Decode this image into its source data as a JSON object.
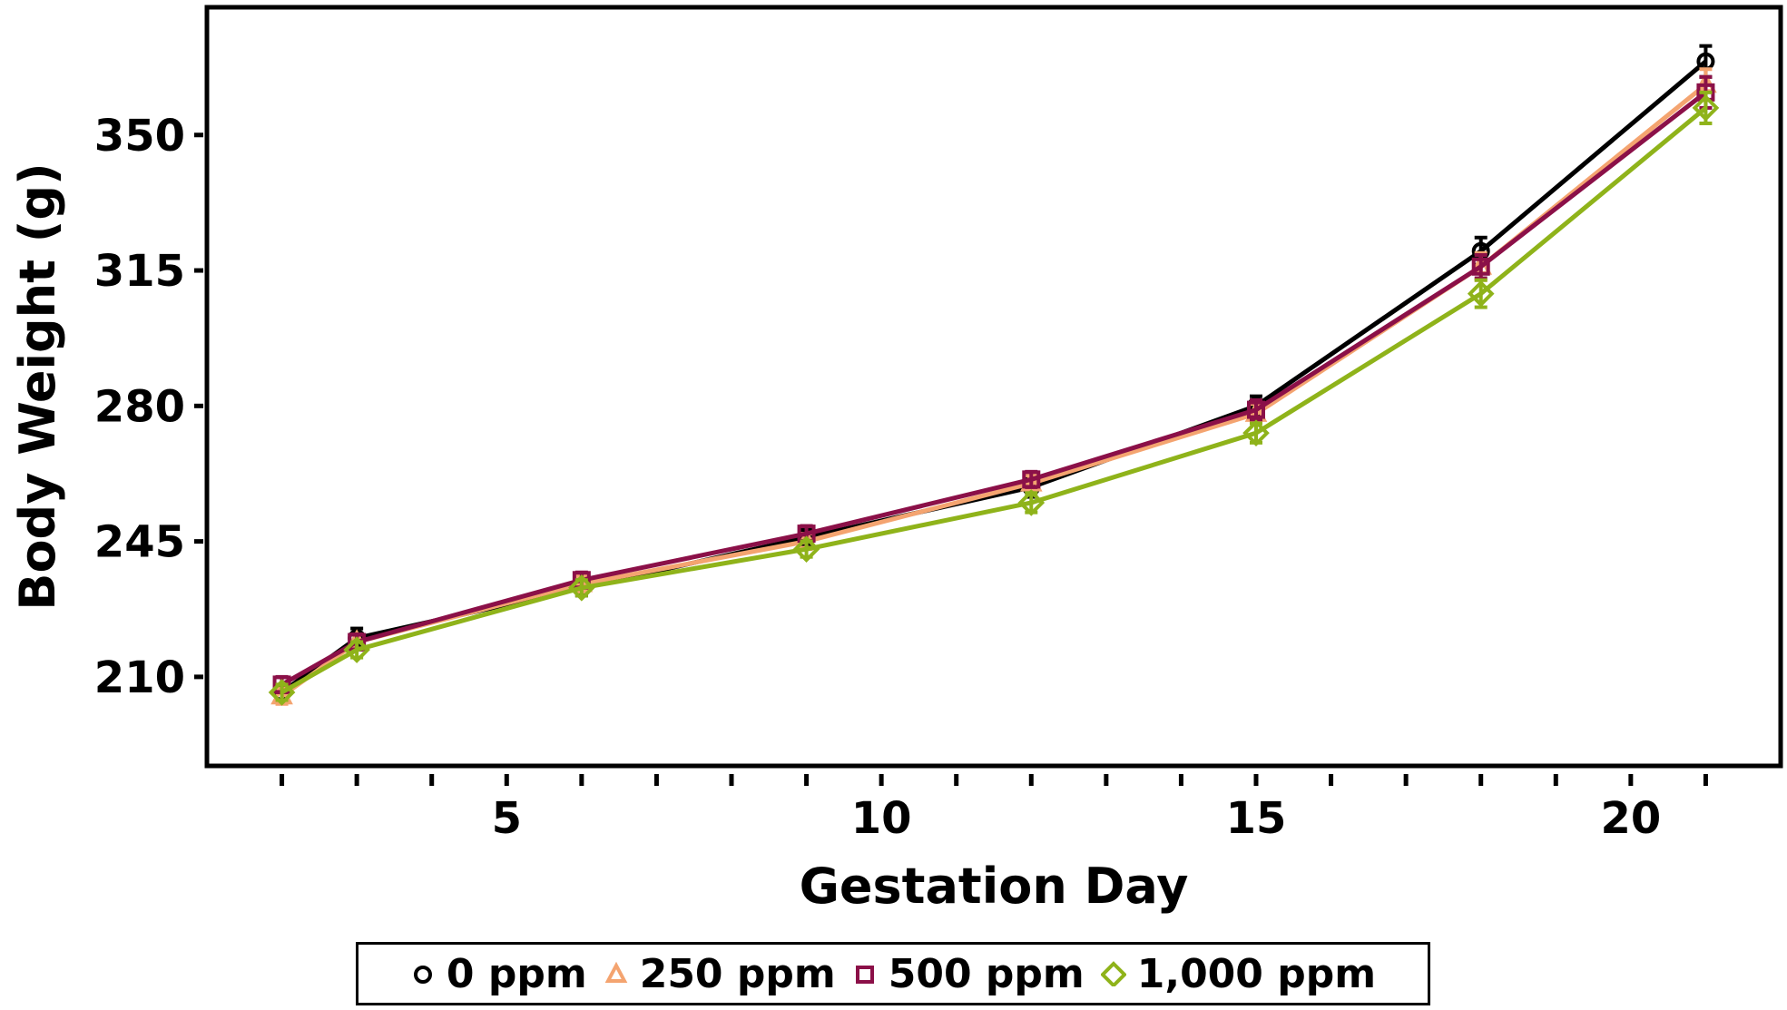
{
  "chart_data": {
    "type": "line",
    "xlabel": "Gestation Day",
    "ylabel": "Body Weight (g)",
    "xlim": [
      1.0,
      22.0
    ],
    "ylim": [
      187.0,
      383.0
    ],
    "x_ticks_major": [
      5,
      10,
      15,
      20
    ],
    "x_ticks_minor": [
      2,
      3,
      4,
      6,
      7,
      8,
      9,
      11,
      12,
      13,
      14,
      16,
      17,
      18,
      19,
      21
    ],
    "y_ticks": [
      210,
      245,
      280,
      315,
      350
    ],
    "grid": false,
    "legend_placement": "bottom-center",
    "x": [
      2,
      3,
      6,
      9,
      12,
      15,
      18,
      21
    ],
    "series": [
      {
        "name": "0 ppm",
        "color": "#000000",
        "marker": "circle",
        "values": [
          206,
          220,
          233,
          246,
          259,
          280,
          320,
          369
        ],
        "errors": [
          2.0,
          2.5,
          2.0,
          2.0,
          2.5,
          2.5,
          3.5,
          4.0
        ]
      },
      {
        "name": "250 ppm",
        "color": "#f4a470",
        "marker": "triangle",
        "values": [
          205,
          219,
          234,
          245,
          260,
          278,
          316,
          363
        ],
        "errors": [
          2.0,
          2.0,
          2.0,
          2.0,
          2.0,
          2.5,
          3.5,
          4.0
        ]
      },
      {
        "name": "500 ppm",
        "color": "#8b1048",
        "marker": "square",
        "values": [
          208,
          219,
          235,
          247,
          261,
          279,
          316,
          361
        ],
        "errors": [
          2.0,
          2.0,
          2.0,
          2.0,
          2.0,
          2.5,
          3.0,
          4.0
        ]
      },
      {
        "name": "1,000 ppm",
        "color": "#8fb31a",
        "marker": "diamond",
        "values": [
          206,
          217,
          233,
          243,
          255,
          273,
          309,
          357
        ],
        "errors": [
          2.0,
          2.0,
          2.0,
          2.0,
          2.5,
          2.5,
          3.5,
          4.0
        ]
      }
    ]
  }
}
